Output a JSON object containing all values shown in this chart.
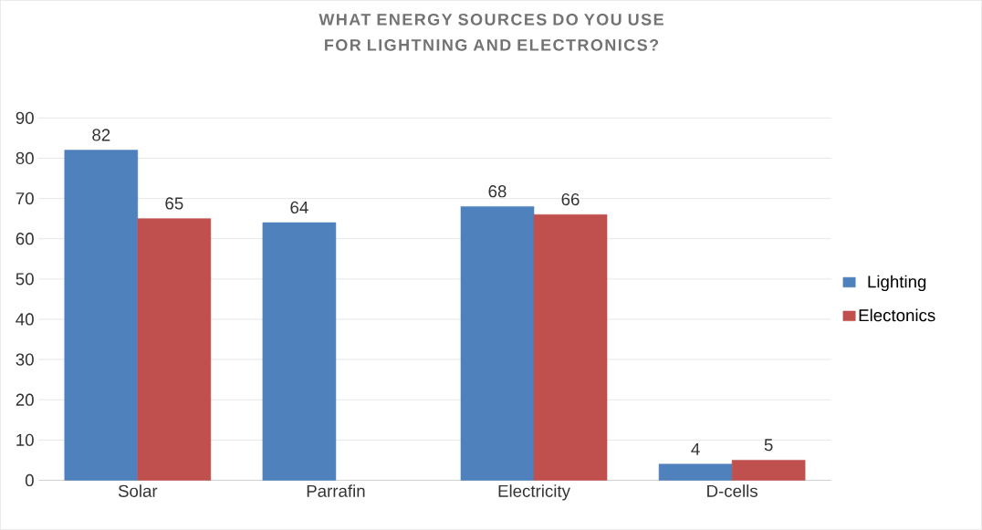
{
  "chart_data": {
    "type": "bar",
    "title": "WHAT ENERGY SOURCES DO YOU USE FOR LIGHTNING AND ELECTRONICS?",
    "categories": [
      "Solar",
      "Parrafin",
      "Electricity",
      "D-cells"
    ],
    "series": [
      {
        "name": "Lighting",
        "color": "#4f81bd",
        "values": [
          82,
          64,
          68,
          4
        ]
      },
      {
        "name": "Electonics",
        "color": "#c0504d",
        "values": [
          65,
          null,
          66,
          5
        ]
      }
    ],
    "ylim": [
      0,
      90
    ],
    "yticks": [
      0,
      10,
      20,
      30,
      40,
      50,
      60,
      70,
      80,
      90
    ],
    "grid": "y",
    "legend": "right",
    "data_labels": true
  }
}
